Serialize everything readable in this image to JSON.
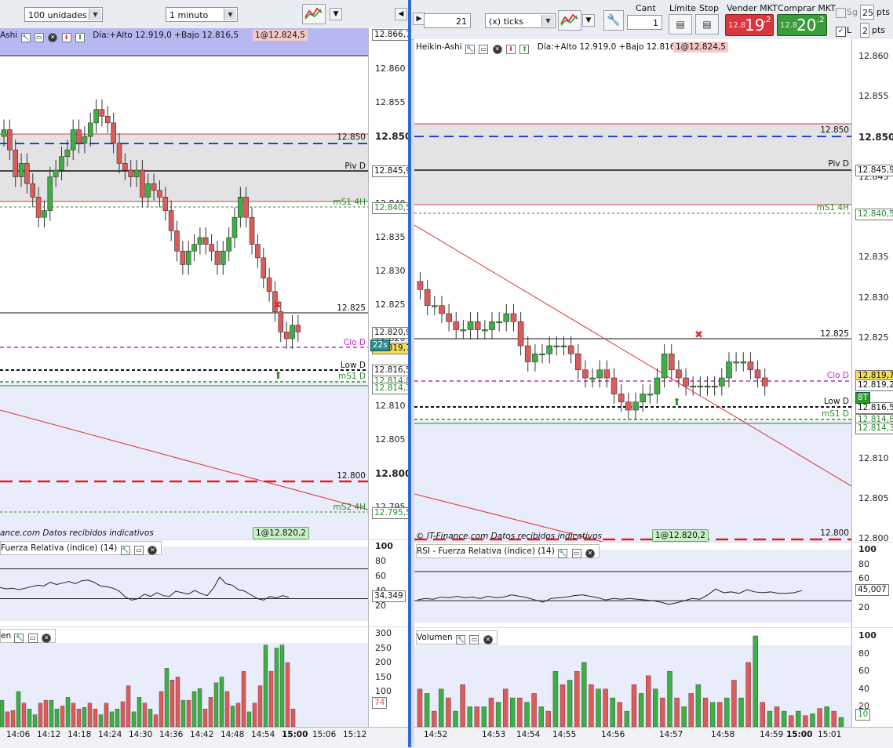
{
  "left_toolbar": {
    "quantity_select": "100 unidades",
    "timeframe_select": "1 minuto"
  },
  "right_toolbar": {
    "tick_count": "21",
    "tick_unit_select": "(x) ticks",
    "cant_label": "Cant",
    "cant_value": "1",
    "limit_label": "Límite",
    "stop_label": "Stop",
    "sell_label": "Vender MKT",
    "buy_label": "Comprar MKT",
    "sell_price_prefix": "12.8",
    "sell_price_main": "19",
    "sell_price_suffix": ",2",
    "buy_price_prefix": "12.8",
    "buy_price_main": "20",
    "buy_price_suffix": ",2",
    "sg_label": "Sg",
    "sg_value": "25",
    "sg_unit": "pts",
    "l_label": "L",
    "l_value": "2",
    "l_unit": "pts"
  },
  "left_chart": {
    "header_name": "Ashi",
    "header_info": "Día:+Alto 12.919,0 +Bajo 12.816,5",
    "order_badge_top": "1@12.824,5",
    "order_badge_bottom": "1@12.820,2",
    "footer_text": "ance.com  Datos recibidos indicativos",
    "price_ticks": [
      "12.865",
      "12.860",
      "12.855",
      "12.850",
      "12.845",
      "12.840",
      "12.835",
      "12.830",
      "12.825",
      "12.820",
      "12.815",
      "12.810",
      "12.805",
      "12.800",
      "12.795"
    ],
    "price_tags": {
      "top": "12.866,7",
      "piv": "12.845,9",
      "ms1_4h": "12.840,5",
      "cur": "12.820,9",
      "clo": "12.819,7",
      "timer": "22s",
      "low": "12.816,5",
      "ms1_d_a": "12.814,8",
      "ms1_d_b": "12.814,3",
      "ms2_4h": "12.795,5"
    },
    "line_labels": {
      "l12850": "12.850",
      "piv": "Piv D",
      "ms1_4h": "mS1 4H",
      "l12825": "12.825",
      "clo": "Clo D",
      "low": "Low D",
      "ms1_d": "mS1 D",
      "l12800": "12.800",
      "ms2_4h": "mS2 4H"
    },
    "rsi_header": "Fuerza Relativa (índice) (14)",
    "rsi_ticks": [
      "100",
      "80",
      "60",
      "40",
      "20"
    ],
    "rsi_value": "34,349",
    "vol_header": "en",
    "vol_ticks": [
      "300",
      "250",
      "200",
      "150",
      "100",
      "50"
    ],
    "vol_value": "74",
    "time_ticks": [
      "14:06",
      "14:12",
      "14:18",
      "14:24",
      "14:30",
      "14:36",
      "14:42",
      "14:48",
      "14:54",
      "15:00",
      "15:06",
      "15:12"
    ]
  },
  "right_chart": {
    "header_name": "Heikin-Ashi",
    "header_info": "Día:+Alto 12.919,0 +Bajo 12.816,5",
    "order_badge_top": "1@12.824,5",
    "order_badge_bottom": "1@12.820,2",
    "footer_text": "© IT-Finance.com  Datos recibidos indicativos",
    "price_ticks": [
      "12.860",
      "12.855",
      "12.850",
      "12.845",
      "12.840",
      "12.835",
      "12.830",
      "12.825",
      "12.820",
      "12.815",
      "12.810",
      "12.805",
      "12.800"
    ],
    "price_tags": {
      "piv": "12.845,9",
      "ms1_4h": "12.840,5",
      "clo": "12.819,7",
      "cur": "12.819,2",
      "ticks_left": "8T",
      "low": "12.816,5",
      "ms1_d_a": "12.814,8",
      "ms1_d_b": "12.814,3"
    },
    "line_labels": {
      "l12850": "12.850",
      "piv": "Piv D",
      "ms1_4h": "mS1 4H",
      "l12825": "12.825",
      "clo": "Clo D",
      "low": "Low D",
      "ms1_d": "mS1 D",
      "l12800": "12.800"
    },
    "rsi_header": "RSI - Fuerza Relativa (índice) (14)",
    "rsi_ticks": [
      "100",
      "80",
      "60",
      "40",
      "20"
    ],
    "rsi_value": "45,007",
    "vol_header": "Volumen",
    "vol_ticks": [
      "100",
      "80",
      "60",
      "40",
      "20"
    ],
    "vol_value": "10",
    "time_ticks": [
      "14:52",
      "14:53",
      "14:54",
      "14:55",
      "14:56",
      "14:57",
      "14:58",
      "14:59",
      "15:00",
      "15:01"
    ]
  },
  "colors": {
    "up": "#3cb043",
    "down": "#e05a5a",
    "accent_blue": "#2f6bd6",
    "sell_bg": "#d9363e",
    "buy_bg": "#3a9c3a"
  }
}
